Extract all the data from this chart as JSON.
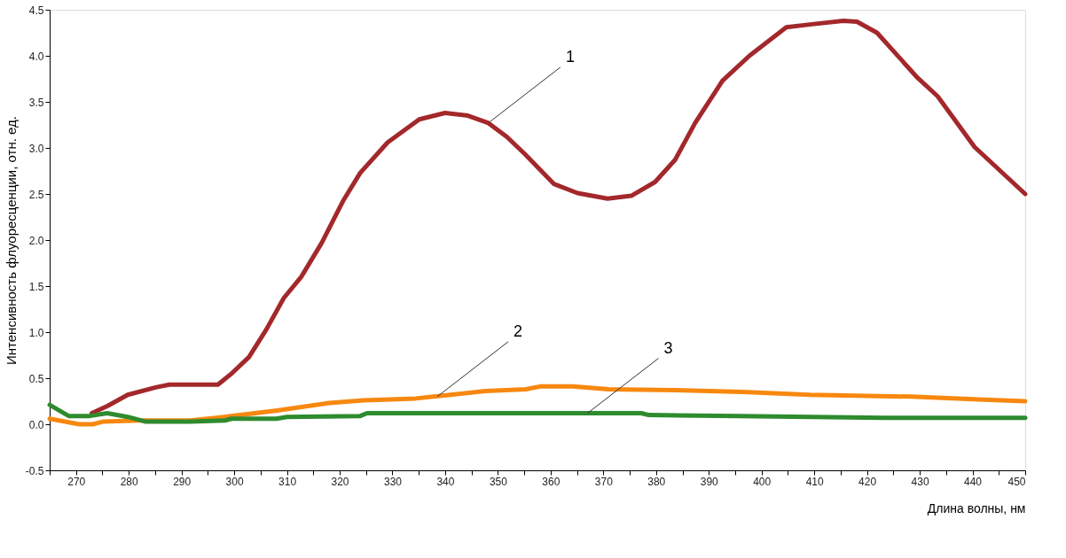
{
  "chart_data": {
    "type": "line",
    "xlabel": "Длина волны, нм",
    "ylabel": "Интенсивность флуоресценции, отн. ед.",
    "xlim": [
      265,
      450
    ],
    "xticks": [
      {
        "value": 265,
        "label": null
      },
      270,
      {
        "value": 275,
        "label": null
      },
      280,
      {
        "value": 285,
        "label": null
      },
      290,
      {
        "value": 295,
        "label": null
      },
      300,
      {
        "value": 305,
        "label": null
      },
      310,
      {
        "value": 315,
        "label": null
      },
      320,
      {
        "value": 325,
        "label": null
      },
      330,
      {
        "value": 335,
        "label": null
      },
      340,
      {
        "value": 345,
        "label": null
      },
      350,
      {
        "value": 355,
        "label": null
      },
      360,
      {
        "value": 365,
        "label": null
      },
      370,
      {
        "value": 375,
        "label": null
      },
      380,
      {
        "value": 385,
        "label": null
      },
      390,
      {
        "value": 395,
        "label": null
      },
      400,
      {
        "value": 405,
        "label": null
      },
      410,
      {
        "value": 415,
        "label": null
      },
      420,
      {
        "value": 425,
        "label": null
      },
      430,
      {
        "value": 435,
        "label": null
      },
      440,
      {
        "value": 445,
        "label": null
      },
      450
    ],
    "ylim": [
      -0.5,
      4.5
    ],
    "yticks": [
      -0.5,
      {
        "value": 0,
        "label": "0.0"
      },
      0.5,
      {
        "value": 1,
        "label": "1.0"
      },
      1.5,
      {
        "value": 2,
        "label": "2.0"
      },
      2.5,
      {
        "value": 3,
        "label": "3.0"
      },
      3.5,
      {
        "value": 4,
        "label": "4.0"
      },
      4.5
    ],
    "grid": false,
    "legend": false,
    "marker": "none",
    "line_style": "solid",
    "series": [
      {
        "color": "#a3282b",
        "x": [
          273,
          276,
          279.8,
          285.1,
          287.7,
          296.9,
          299.5,
          302.8,
          306.1,
          309.4,
          312.7,
          316.6,
          320.6,
          323.9,
          329.1,
          335.1,
          340,
          344.3,
          348.2,
          351.7,
          355,
          360.6,
          365.1,
          370.8,
          375.3,
          379.8,
          383.6,
          387.4,
          392.6,
          397.7,
          404.7,
          409.2,
          415.5,
          418.1,
          421.9,
          429.6,
          433.4,
          440.4,
          450
        ],
        "values": [
          0.12,
          0.2,
          0.32,
          0.4,
          0.43,
          0.43,
          0.55,
          0.73,
          1.03,
          1.37,
          1.6,
          1.97,
          2.42,
          2.73,
          3.06,
          3.31,
          3.38,
          3.35,
          3.27,
          3.12,
          2.94,
          2.61,
          2.51,
          2.45,
          2.48,
          2.63,
          2.87,
          3.27,
          3.73,
          4.0,
          4.31,
          4.34,
          4.38,
          4.37,
          4.25,
          3.76,
          3.56,
          3.01,
          2.5
        ]
      },
      {
        "color": "#f7880f",
        "x": [
          265,
          270.6,
          273.2,
          275.2,
          281.8,
          291.6,
          298.2,
          308.1,
          318,
          324.5,
          334.4,
          341,
          347.6,
          355.3,
          358,
          364.2,
          371,
          383.6,
          396.4,
          409.2,
          428.4,
          441.2,
          450
        ],
        "values": [
          0.06,
          0.0,
          0.0,
          0.03,
          0.04,
          0.04,
          0.08,
          0.15,
          0.23,
          0.26,
          0.28,
          0.32,
          0.36,
          0.38,
          0.41,
          0.41,
          0.38,
          0.37,
          0.35,
          0.32,
          0.3,
          0.27,
          0.25
        ]
      },
      {
        "color": "#2e8b2e",
        "x": [
          265,
          268.6,
          272.6,
          275.9,
          279.8,
          283.1,
          291.6,
          298.2,
          299.5,
          308,
          310,
          323.9,
          325.2,
          355.3,
          377.2,
          378.6,
          395.8,
          423.3,
          450
        ],
        "values": [
          0.21,
          0.09,
          0.09,
          0.12,
          0.08,
          0.03,
          0.03,
          0.04,
          0.06,
          0.06,
          0.08,
          0.09,
          0.12,
          0.12,
          0.12,
          0.1,
          0.09,
          0.07,
          0.07
        ]
      }
    ],
    "annotations": [
      {
        "text": "1",
        "x": 348.4,
        "y": 3.28
      },
      {
        "text": "2",
        "x": 338.5,
        "y": 0.3
      },
      {
        "text": "3",
        "x": 367,
        "y": 0.12
      }
    ]
  }
}
